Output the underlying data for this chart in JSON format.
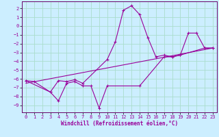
{
  "xlabel": "Windchill (Refroidissement éolien,°C)",
  "bg_color": "#cceeff",
  "grid_color": "#aaddcc",
  "line_color": "#990099",
  "spine_color": "#660066",
  "xlim": [
    -0.5,
    23.5
  ],
  "ylim": [
    -9.8,
    2.8
  ],
  "xticks": [
    0,
    1,
    2,
    3,
    4,
    5,
    6,
    7,
    8,
    9,
    10,
    11,
    12,
    13,
    14,
    15,
    16,
    17,
    18,
    19,
    20,
    21,
    22,
    23
  ],
  "yticks": [
    2,
    1,
    0,
    -1,
    -2,
    -3,
    -4,
    -5,
    -6,
    -7,
    -8,
    -9
  ],
  "line1_x": [
    0,
    1,
    3,
    4,
    5,
    6,
    7,
    10,
    11,
    12,
    13,
    14,
    15,
    16,
    17,
    18,
    19,
    20,
    21,
    22,
    23
  ],
  "line1_y": [
    -6.2,
    -6.3,
    -7.5,
    -6.2,
    -6.3,
    -6.1,
    -6.5,
    -3.8,
    -1.8,
    1.8,
    2.3,
    1.3,
    -1.3,
    -3.5,
    -3.3,
    -3.5,
    -3.3,
    -0.8,
    -0.8,
    -2.5,
    -2.5
  ],
  "line2_x": [
    0,
    3,
    4,
    5,
    6,
    7,
    8,
    9,
    10,
    14,
    17,
    18,
    19,
    22,
    23
  ],
  "line2_y": [
    -6.2,
    -7.5,
    -8.5,
    -6.5,
    -6.3,
    -6.8,
    -6.8,
    -9.3,
    -6.8,
    -6.8,
    -3.5,
    -3.5,
    -3.3,
    -2.5,
    -2.5
  ],
  "line3_x": [
    0,
    23
  ],
  "line3_y": [
    -6.5,
    -2.5
  ],
  "tick_fontsize": 5,
  "xlabel_fontsize": 5.5
}
